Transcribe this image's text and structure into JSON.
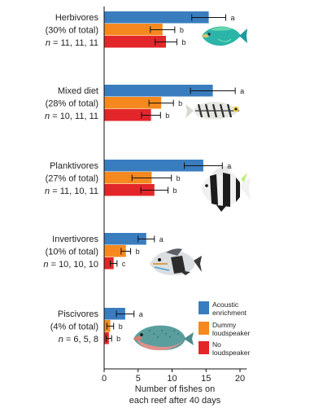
{
  "chart_data": {
    "type": "bar",
    "orientation": "horizontal",
    "xlabel": [
      "Number of fishes on",
      "each reef after 40 days"
    ],
    "xlim": [
      0,
      21
    ],
    "xticks": [
      0,
      5,
      10,
      15,
      20
    ],
    "grid": false,
    "legend_placement": "bottom-right",
    "series": [
      {
        "name": "Acoustic enrichment",
        "legend_lines": [
          "Acoustic",
          "enrichment"
        ],
        "color": "#3a7dbf"
      },
      {
        "name": "Dummy loudspeaker",
        "legend_lines": [
          "Dummy",
          "loudspeaker"
        ],
        "color": "#f5891f"
      },
      {
        "name": "No loudspeaker",
        "legend_lines": [
          "No",
          "loudspeaker"
        ],
        "color": "#e3262a"
      }
    ],
    "groups": [
      {
        "label_lines": [
          "Herbivores",
          "(30% of total)"
        ],
        "n_text": "= 11, 11, 11",
        "fish": "parrotfish",
        "bars": [
          {
            "value": 15.4,
            "err": 2.5,
            "sig": "a"
          },
          {
            "value": 8.6,
            "err": 1.8,
            "sig": "b"
          },
          {
            "value": 9.1,
            "err": 1.6,
            "sig": "b"
          }
        ]
      },
      {
        "label_lines": [
          "Mixed diet",
          "(28% of total)"
        ],
        "n_text": "= 10, 11, 11",
        "fish": "cardinalfish",
        "bars": [
          {
            "value": 16.0,
            "err": 3.3,
            "sig": "a"
          },
          {
            "value": 8.4,
            "err": 1.8,
            "sig": "b"
          },
          {
            "value": 6.9,
            "err": 1.4,
            "sig": "b"
          }
        ]
      },
      {
        "label_lines": [
          "Planktivores",
          "(27% of total)"
        ],
        "n_text": "= 11, 10, 11",
        "fish": "damselfish",
        "bars": [
          {
            "value": 14.6,
            "err": 2.8,
            "sig": "a"
          },
          {
            "value": 7.0,
            "err": 2.9,
            "sig": "b"
          },
          {
            "value": 7.4,
            "err": 2.0,
            "sig": "b"
          }
        ]
      },
      {
        "label_lines": [
          "Invertivores",
          "(10% of total)"
        ],
        "n_text": "= 10, 10, 10",
        "fish": "triggerfish",
        "bars": [
          {
            "value": 6.2,
            "err": 1.2,
            "sig": "a"
          },
          {
            "value": 3.2,
            "err": 0.7,
            "sig": "b"
          },
          {
            "value": 1.4,
            "err": 0.5,
            "sig": "c"
          }
        ]
      },
      {
        "label_lines": [
          "Piscivores",
          "(4% of total)"
        ],
        "n_text": "= 6, 5, 8",
        "fish": "grouper",
        "bars": [
          {
            "value": 3.1,
            "err": 1.3,
            "sig": "a"
          },
          {
            "value": 0.9,
            "err": 0.5,
            "sig": "b"
          },
          {
            "value": 0.7,
            "err": 0.4,
            "sig": "b"
          }
        ]
      }
    ]
  }
}
